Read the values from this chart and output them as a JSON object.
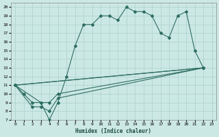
{
  "xlabel": "Humidex (Indice chaleur)",
  "bg_color": "#cce8e4",
  "line_color": "#2e6e62",
  "grid_color": "#b0d4ce",
  "xlim": [
    -0.5,
    23.5
  ],
  "ylim": [
    7,
    20.5
  ],
  "xticks": [
    0,
    1,
    2,
    3,
    4,
    5,
    6,
    7,
    8,
    9,
    10,
    11,
    12,
    13,
    14,
    15,
    16,
    17,
    18,
    19,
    20,
    21,
    22,
    23
  ],
  "yticks": [
    7,
    8,
    9,
    10,
    11,
    12,
    13,
    14,
    15,
    16,
    17,
    18,
    19,
    20
  ],
  "line1_x": [
    0,
    1,
    2,
    3,
    4,
    5,
    6,
    7,
    8,
    9,
    10,
    11,
    12,
    13,
    14,
    15,
    16,
    17,
    18,
    19,
    20,
    21,
    22
  ],
  "line1_y": [
    11,
    10,
    9,
    9,
    7,
    9,
    12,
    15.5,
    18,
    18,
    19,
    19,
    18.5,
    20,
    19.5,
    19.5,
    19,
    17,
    16.5,
    19,
    19.5,
    15,
    13
  ],
  "line2_x": [
    0,
    2,
    3,
    4,
    5,
    22
  ],
  "line2_y": [
    11,
    8.5,
    8.5,
    8,
    9.5,
    13
  ],
  "line3_x": [
    0,
    22
  ],
  "line3_y": [
    11,
    13
  ],
  "line4_x": [
    0,
    22
  ],
  "line4_y": [
    11,
    13
  ],
  "line5_x": [
    0,
    3,
    4,
    5,
    22
  ],
  "line5_y": [
    11,
    9,
    9,
    10,
    13
  ]
}
